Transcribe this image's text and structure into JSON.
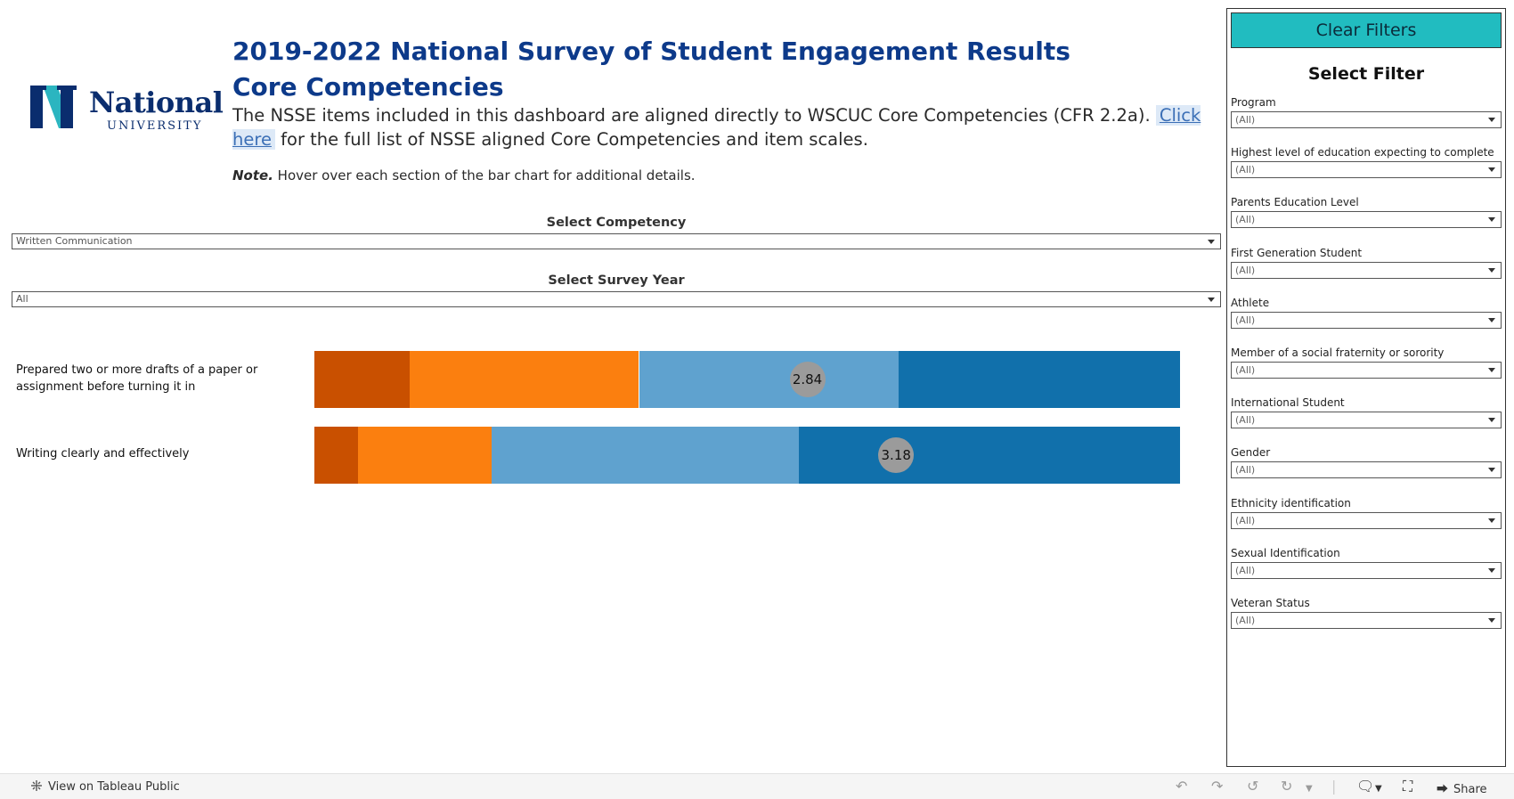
{
  "header": {
    "logo_word": "National",
    "logo_sub": "UNIVERSITY",
    "title_line1": "2019-2022 National Survey of Student Engagement Results",
    "title_line2": "Core Competencies",
    "desc_before": "The NSSE items included in this dashboard are aligned directly to WSCUC Core Competencies (CFR 2.2a). ",
    "desc_link": "Click here",
    "desc_after": " for the full list of NSSE aligned Core Competencies and item scales.",
    "note_label": "Note.",
    "note_text": " Hover over each section of the bar chart for additional details."
  },
  "filters": {
    "competency_label": "Select Competency",
    "competency_value": "Written Communication",
    "year_label": "Select Survey Year",
    "year_value": "All"
  },
  "chart_data": {
    "type": "bar",
    "orientation": "horizontal",
    "stacked": true,
    "categories": [
      "Prepared two or more drafts of a paper or assignment before turning it in",
      "Writing clearly and effectively"
    ],
    "series": [
      {
        "values": [
          11,
          5
        ],
        "color": "#c95000"
      },
      {
        "values": [
          26.5,
          15.5
        ],
        "color": "#fb7f0f"
      },
      {
        "values": [
          30,
          35.5
        ],
        "color": "#5fa2cf"
      },
      {
        "values": [
          32.5,
          44
        ],
        "color": "#1170ab"
      }
    ],
    "means": [
      2.84,
      3.18
    ],
    "xlim": [
      0,
      100
    ]
  },
  "panel": {
    "clear_label": "Clear Filters",
    "title": "Select Filter",
    "filters": [
      {
        "label": "Program",
        "value": "(All)"
      },
      {
        "label": "Highest level of education expecting to complete",
        "value": "(All)"
      },
      {
        "label": "Parents Education Level",
        "value": "(All)"
      },
      {
        "label": "First Generation Student",
        "value": "(All)"
      },
      {
        "label": "Athlete",
        "value": "(All)"
      },
      {
        "label": "Member of a social fraternity or sorority",
        "value": "(All)"
      },
      {
        "label": "International Student",
        "value": "(All)"
      },
      {
        "label": "Gender",
        "value": "(All)"
      },
      {
        "label": "Ethnicity identification",
        "value": "(All)"
      },
      {
        "label": "Sexual Identification",
        "value": "(All)"
      },
      {
        "label": "Veteran Status",
        "value": "(All)"
      }
    ]
  },
  "toolbar": {
    "view_label": "View on Tableau Public",
    "share_label": "Share"
  }
}
